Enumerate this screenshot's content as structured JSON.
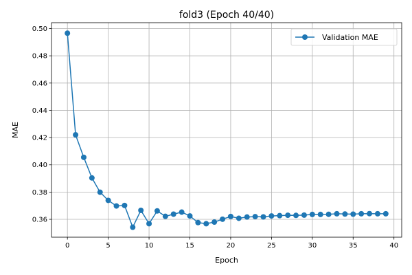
{
  "chart_data": {
    "type": "line",
    "title": "fold3 (Epoch 40/40)",
    "xlabel": "Epoch",
    "ylabel": "MAE",
    "xlim": [
      -1.95,
      40.95
    ],
    "ylim": [
      0.3469,
      0.5043
    ],
    "xticks": [
      0,
      5,
      10,
      15,
      20,
      25,
      30,
      35,
      40
    ],
    "yticks": [
      0.36,
      0.38,
      0.4,
      0.42,
      0.44,
      0.46,
      0.48,
      0.5
    ],
    "xtick_labels": [
      "0",
      "5",
      "10",
      "15",
      "20",
      "25",
      "30",
      "35",
      "40"
    ],
    "ytick_labels": [
      "0.36",
      "0.38",
      "0.40",
      "0.42",
      "0.44",
      "0.46",
      "0.48",
      "0.50"
    ],
    "grid": true,
    "legend_position": "top-right",
    "series": [
      {
        "name": "Validation MAE",
        "color": "#1f77b4",
        "marker": "circle",
        "x": [
          0,
          1,
          2,
          3,
          4,
          5,
          6,
          7,
          8,
          9,
          10,
          11,
          12,
          13,
          14,
          15,
          16,
          17,
          18,
          19,
          20,
          21,
          22,
          23,
          24,
          25,
          26,
          27,
          28,
          29,
          30,
          31,
          32,
          33,
          34,
          35,
          36,
          37,
          38,
          39
        ],
        "y": [
          0.4966,
          0.422,
          0.4055,
          0.3904,
          0.3799,
          0.3739,
          0.3698,
          0.3702,
          0.3542,
          0.3666,
          0.3568,
          0.3662,
          0.3622,
          0.3638,
          0.3653,
          0.3625,
          0.3576,
          0.3568,
          0.358,
          0.3601,
          0.3621,
          0.3608,
          0.3617,
          0.362,
          0.3618,
          0.3625,
          0.3627,
          0.363,
          0.3629,
          0.3631,
          0.3636,
          0.3636,
          0.3637,
          0.3641,
          0.3639,
          0.3638,
          0.3641,
          0.3642,
          0.3641,
          0.3641
        ]
      }
    ]
  }
}
